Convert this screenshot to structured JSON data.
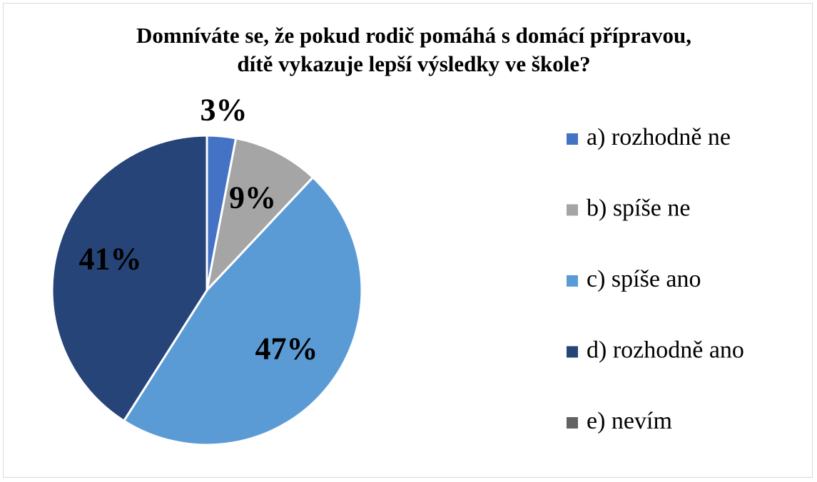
{
  "chart_data": {
    "type": "pie",
    "title": "Domníváte se, že pokud rodič pomáhá s domácí přípravou, dítě vykazuje lepší výsledky ve škole?",
    "categories": [
      "a) rozhodně ne",
      "b) spíše ne",
      "c) spíše ano",
      "d) rozhodně ano",
      "e) nevím"
    ],
    "values": [
      3,
      9,
      47,
      41,
      0
    ],
    "value_labels": [
      "3%",
      "9%",
      "47%",
      "41%",
      null
    ],
    "colors": [
      "#4472c4",
      "#a5a5a5",
      "#5b9bd5",
      "#264478",
      "#636363"
    ],
    "legend": "right"
  }
}
